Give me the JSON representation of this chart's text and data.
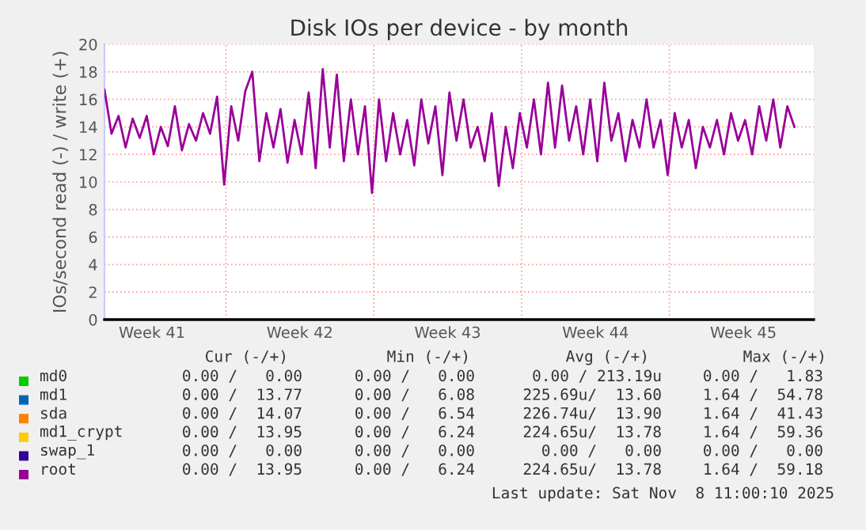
{
  "chart_data": {
    "type": "line",
    "title": "Disk IOs per device - by month",
    "ylabel": "IOs/second read (-) / write (+)",
    "x": [
      "2025-10-07T06:00",
      "2025-10-07T14:00",
      "2025-10-07T22:00",
      "2025-10-08T06:00",
      "2025-10-08T14:00",
      "2025-10-08T22:00",
      "2025-10-09T06:00",
      "2025-10-09T14:00",
      "2025-10-09T22:00",
      "2025-10-10T06:00",
      "2025-10-10T14:00",
      "2025-10-10T22:00",
      "2025-10-11T06:00",
      "2025-10-11T14:00",
      "2025-10-11T22:00",
      "2025-10-12T06:00",
      "2025-10-12T14:00",
      "2025-10-12T22:00",
      "2025-10-13T06:00",
      "2025-10-13T14:00",
      "2025-10-13T22:00",
      "2025-10-14T06:00",
      "2025-10-14T14:00",
      "2025-10-14T22:00",
      "2025-10-15T06:00",
      "2025-10-15T14:00",
      "2025-10-15T22:00",
      "2025-10-16T06:00",
      "2025-10-16T14:00",
      "2025-10-16T22:00",
      "2025-10-17T06:00",
      "2025-10-17T14:00",
      "2025-10-17T22:00",
      "2025-10-18T06:00",
      "2025-10-18T14:00",
      "2025-10-18T22:00",
      "2025-10-19T06:00",
      "2025-10-19T14:00",
      "2025-10-19T22:00",
      "2025-10-20T06:00",
      "2025-10-20T14:00",
      "2025-10-20T22:00",
      "2025-10-21T06:00",
      "2025-10-21T14:00",
      "2025-10-21T22:00",
      "2025-10-22T06:00",
      "2025-10-22T14:00",
      "2025-10-22T22:00",
      "2025-10-23T06:00",
      "2025-10-23T14:00",
      "2025-10-23T22:00",
      "2025-10-24T06:00",
      "2025-10-24T14:00",
      "2025-10-24T22:00",
      "2025-10-25T06:00",
      "2025-10-25T14:00",
      "2025-10-25T22:00",
      "2025-10-26T06:00",
      "2025-10-26T14:00",
      "2025-10-26T22:00",
      "2025-10-27T06:00",
      "2025-10-27T14:00",
      "2025-10-27T22:00",
      "2025-10-28T06:00",
      "2025-10-28T14:00",
      "2025-10-28T22:00",
      "2025-10-29T06:00",
      "2025-10-29T14:00",
      "2025-10-29T22:00",
      "2025-10-30T06:00",
      "2025-10-30T14:00",
      "2025-10-30T22:00",
      "2025-10-31T06:00",
      "2025-10-31T14:00",
      "2025-10-31T22:00",
      "2025-11-01T06:00",
      "2025-11-01T14:00",
      "2025-11-01T22:00",
      "2025-11-02T06:00",
      "2025-11-02T14:00",
      "2025-11-02T22:00",
      "2025-11-03T06:00",
      "2025-11-03T14:00",
      "2025-11-03T22:00",
      "2025-11-04T06:00",
      "2025-11-04T14:00",
      "2025-11-04T22:00",
      "2025-11-05T06:00",
      "2025-11-05T14:00",
      "2025-11-05T22:00",
      "2025-11-06T06:00",
      "2025-11-06T14:00",
      "2025-11-06T22:00",
      "2025-11-07T06:00",
      "2025-11-07T14:00",
      "2025-11-07T22:00",
      "2025-11-08T06:00",
      "2025-11-08T14:00",
      "2025-11-08T22:00"
    ],
    "series": [
      {
        "name": "md0",
        "color": "#00cc00",
        "values": [
          null,
          null,
          null,
          null,
          null,
          null,
          null,
          null,
          null,
          null,
          null,
          null,
          null,
          null,
          null,
          null,
          null,
          null,
          null,
          null,
          null,
          null,
          null,
          null,
          null,
          null,
          null,
          null,
          null,
          null,
          null,
          null,
          null,
          null,
          null,
          null,
          null,
          null,
          null,
          null,
          null,
          null,
          null,
          null,
          null,
          null,
          null,
          null,
          null,
          null,
          null,
          null,
          null,
          null,
          null,
          null,
          null,
          null,
          null,
          null,
          null,
          null,
          null,
          null,
          null,
          null,
          null,
          null,
          null,
          null,
          null,
          null,
          null,
          null,
          null,
          null,
          null,
          null,
          null,
          null,
          null,
          null,
          null,
          null,
          null,
          null,
          null,
          null,
          null,
          null,
          null,
          null,
          null,
          null,
          null,
          null,
          null,
          null,
          null
        ]
      },
      {
        "name": "md1",
        "color": "#0066b3",
        "values": [
          null,
          null,
          null,
          null,
          null,
          null,
          null,
          null,
          null,
          null,
          null,
          null,
          null,
          null,
          null,
          null,
          null,
          null,
          null,
          null,
          null,
          null,
          null,
          null,
          null,
          null,
          null,
          null,
          null,
          null,
          null,
          null,
          null,
          null,
          null,
          null,
          null,
          null,
          null,
          null,
          null,
          null,
          null,
          null,
          null,
          null,
          null,
          null,
          null,
          null,
          null,
          null,
          null,
          null,
          null,
          null,
          null,
          null,
          null,
          null,
          null,
          null,
          null,
          null,
          null,
          null,
          null,
          null,
          null,
          null,
          null,
          null,
          null,
          null,
          null,
          null,
          null,
          null,
          null,
          null,
          null,
          null,
          null,
          null,
          null,
          null,
          null,
          null,
          null,
          null,
          null,
          null,
          null,
          null,
          null,
          null,
          null,
          null,
          null
        ]
      },
      {
        "name": "sda",
        "color": "#ff8000",
        "values": [
          null,
          null,
          null,
          null,
          null,
          null,
          null,
          null,
          null,
          null,
          null,
          null,
          null,
          null,
          null,
          null,
          null,
          null,
          null,
          null,
          null,
          null,
          null,
          null,
          null,
          null,
          null,
          null,
          null,
          null,
          null,
          null,
          null,
          null,
          null,
          null,
          null,
          null,
          null,
          null,
          null,
          null,
          null,
          null,
          null,
          null,
          null,
          null,
          null,
          null,
          null,
          null,
          null,
          null,
          null,
          null,
          null,
          null,
          null,
          null,
          null,
          null,
          null,
          null,
          null,
          null,
          null,
          null,
          null,
          null,
          null,
          null,
          null,
          null,
          null,
          null,
          null,
          null,
          null,
          null,
          null,
          null,
          null,
          null,
          null,
          null,
          null,
          null,
          null,
          null,
          null,
          null,
          null,
          null,
          null,
          null,
          null,
          null,
          null
        ]
      },
      {
        "name": "md1_crypt",
        "color": "#ffcc00",
        "values": [
          null,
          null,
          null,
          null,
          null,
          null,
          null,
          null,
          null,
          null,
          null,
          null,
          null,
          null,
          null,
          null,
          null,
          null,
          null,
          null,
          null,
          null,
          null,
          null,
          null,
          null,
          null,
          null,
          null,
          null,
          null,
          null,
          null,
          null,
          null,
          null,
          null,
          null,
          null,
          null,
          null,
          null,
          null,
          null,
          null,
          null,
          null,
          null,
          null,
          null,
          null,
          null,
          null,
          null,
          null,
          null,
          null,
          null,
          null,
          null,
          null,
          null,
          null,
          null,
          null,
          null,
          null,
          null,
          null,
          null,
          null,
          null,
          null,
          null,
          null,
          null,
          null,
          null,
          null,
          null,
          null,
          null,
          null,
          null,
          null,
          null,
          null,
          null,
          null,
          null,
          null,
          null,
          null,
          null,
          null,
          null,
          null,
          null,
          null
        ]
      },
      {
        "name": "swap_1",
        "color": "#330099",
        "values": [
          null,
          null,
          null,
          null,
          null,
          null,
          null,
          null,
          null,
          null,
          null,
          null,
          null,
          null,
          null,
          null,
          null,
          null,
          null,
          null,
          null,
          null,
          null,
          null,
          null,
          null,
          null,
          null,
          null,
          null,
          null,
          null,
          null,
          null,
          null,
          null,
          null,
          null,
          null,
          null,
          null,
          null,
          null,
          null,
          null,
          null,
          null,
          null,
          null,
          null,
          null,
          null,
          null,
          null,
          null,
          null,
          null,
          null,
          null,
          null,
          null,
          null,
          null,
          null,
          null,
          null,
          null,
          null,
          null,
          null,
          null,
          null,
          null,
          null,
          null,
          null,
          null,
          null,
          null,
          null,
          null,
          null,
          null,
          null,
          null,
          null,
          null,
          null,
          null,
          null,
          null,
          null,
          null,
          null,
          null,
          null,
          null,
          null,
          null
        ]
      },
      {
        "name": "root",
        "color": "#990099",
        "values": [
          16.7,
          13.5,
          14.8,
          12.5,
          14.6,
          13.2,
          14.8,
          12.0,
          14.0,
          12.6,
          15.5,
          12.3,
          14.2,
          13.0,
          15.0,
          13.5,
          16.2,
          9.8,
          15.5,
          13.0,
          16.6,
          18.0,
          11.5,
          15.0,
          12.5,
          15.3,
          11.4,
          14.5,
          12.0,
          16.5,
          11.0,
          18.2,
          12.5,
          17.8,
          11.5,
          16.0,
          12.0,
          15.5,
          9.2,
          16.0,
          11.5,
          15.0,
          12.0,
          14.5,
          11.2,
          16.0,
          12.8,
          15.5,
          10.5,
          16.5,
          13.0,
          16.0,
          12.5,
          14.0,
          11.5,
          15.0,
          9.7,
          14.0,
          11.0,
          15.0,
          12.5,
          16.0,
          12.0,
          17.2,
          12.5,
          17.0,
          13.0,
          15.5,
          12.0,
          16.0,
          11.5,
          17.2,
          13.0,
          15.0,
          11.5,
          14.5,
          12.5,
          16.0,
          12.5,
          14.5,
          10.5,
          15.0,
          12.5,
          14.5,
          11.0,
          14.0,
          12.5,
          14.5,
          12.0,
          15.0,
          13.0,
          14.5,
          12.0,
          15.5,
          13.0,
          16.0,
          12.5,
          15.5,
          14.0
        ]
      }
    ],
    "xlim": [
      "2025-10-07T06:00",
      "2025-11-09T20:00"
    ],
    "xticks": [
      {
        "value": "2025-10-09T12:00",
        "label": "Week 41"
      },
      {
        "value": "2025-10-13T00:00",
        "label": null
      },
      {
        "value": "2025-10-16T12:00",
        "label": "Week 42"
      },
      {
        "value": "2025-10-20T00:00",
        "label": null
      },
      {
        "value": "2025-10-23T12:00",
        "label": "Week 43"
      },
      {
        "value": "2025-10-27T00:00",
        "label": null
      },
      {
        "value": "2025-10-30T12:00",
        "label": "Week 44"
      },
      {
        "value": "2025-11-03T00:00",
        "label": null
      },
      {
        "value": "2025-11-06T12:00",
        "label": "Week 45"
      }
    ],
    "ylim": [
      0,
      20
    ],
    "yticks": [
      0,
      2,
      4,
      6,
      8,
      10,
      12,
      14,
      16,
      18,
      20
    ],
    "grid": true,
    "legend": "bottom",
    "marker": "none",
    "line_style": "solid",
    "annotations": [
      "Cur (-/+)",
      "Min (-/+)",
      "Avg (-/+)",
      "Max (-/+)",
      "0.00 /   0.00",
      "0.00 /   0.00",
      "0.00 / 213.19u",
      "0.00 /   1.83",
      "0.00 /  13.77",
      "0.00 /   6.08",
      "225.69u/  13.60",
      "1.64 /  54.78",
      "0.00 /  14.07",
      "0.00 /   6.54",
      "226.74u/  13.90",
      "1.64 /  41.43",
      "0.00 /  13.95",
      "0.00 /   6.24",
      "224.65u/  13.78",
      "1.64 /  59.36",
      "0.00 /   0.00",
      "0.00 /   0.00",
      "0.00 /   0.00",
      "0.00 /   0.00",
      "0.00 /  13.95",
      "0.00 /   6.24",
      "224.65u/  13.78",
      "1.64 /  59.18",
      "Last update: Sat Nov  8 11:00:10 2025"
    ]
  }
}
